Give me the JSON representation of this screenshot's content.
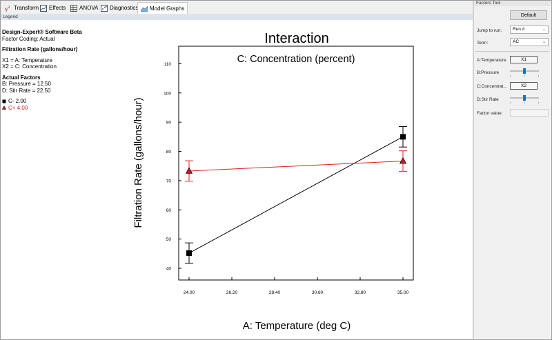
{
  "tabs": [
    {
      "label": "Transform",
      "icon": "transform-icon"
    },
    {
      "label": "Effects",
      "icon": "effects-icon"
    },
    {
      "label": "ANOVA",
      "icon": "anova-icon"
    },
    {
      "label": "Diagnostics",
      "icon": "diagnostics-icon"
    },
    {
      "label": "Model Graphs",
      "icon": "model-graphs-icon"
    }
  ],
  "legend_pane_label": "Legend",
  "legend": {
    "software": "Design-Expert® Software Beta",
    "coding": "Factor Coding: Actual",
    "response": "Filtration Rate (gallons/hour)",
    "x1": "X1 = A: Temperature",
    "x2": "X2 = C: Concentration",
    "actual_title": "Actual Factors",
    "actual_b": "B: Pressure = 12.50",
    "actual_d": "D: Stir Rate = 22.50",
    "low_label": "C- 2.00",
    "high_label": "C+ 4.00"
  },
  "factors_tool": {
    "title": "Factors Tool",
    "default_button": "Default",
    "jump_label": "Jump to run:",
    "jump_value": "Run #",
    "term_label": "Term:",
    "term_value": "AC",
    "factors": [
      {
        "name": "A:Temperature",
        "value": "X1"
      },
      {
        "name": "B:Pressure",
        "level": 0.5
      },
      {
        "name": "C:Concentrat...",
        "value": "X2"
      },
      {
        "name": "D:Stir Rate",
        "level": 0.5
      }
    ],
    "factor_value_label": "Factor value:"
  },
  "colors": {
    "low": "#000000",
    "high": "#e0201d",
    "accent": "#0078d7"
  },
  "chart_data": {
    "type": "line",
    "title": "Interaction",
    "subtitle": "C: Concentration (percent)",
    "xlabel": "A: Temperature (deg C)",
    "ylabel": "Filtration Rate (gallons/hour)",
    "x_ticks": [
      "24.00",
      "26.20",
      "28.40",
      "30.60",
      "32.80",
      "35.00"
    ],
    "y_ticks": [
      "40",
      "50",
      "60",
      "70",
      "80",
      "90",
      "100",
      "110"
    ],
    "xlim": [
      24,
      35
    ],
    "ylim": [
      36,
      116
    ],
    "grid": false,
    "series": [
      {
        "name": "C- 2.00",
        "x": [
          24,
          35
        ],
        "y": [
          45.2,
          85.0
        ],
        "lo": [
          41.7,
          81.5
        ],
        "hi": [
          48.7,
          88.5
        ],
        "color": "#000000",
        "marker": "square"
      },
      {
        "name": "C+ 4.00",
        "x": [
          24,
          35
        ],
        "y": [
          73.3,
          76.7
        ],
        "lo": [
          69.8,
          73.2
        ],
        "hi": [
          76.8,
          80.2
        ],
        "color": "#e0201d",
        "marker": "triangle"
      }
    ]
  }
}
